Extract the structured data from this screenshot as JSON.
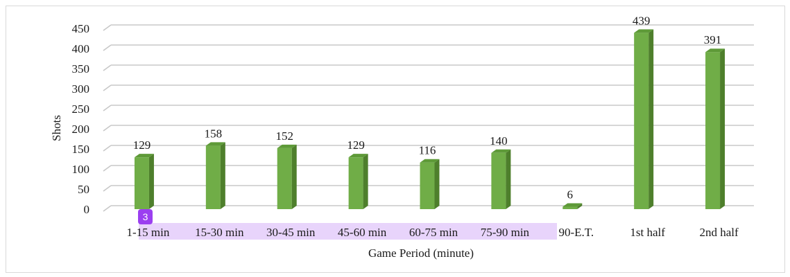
{
  "chart_data": {
    "type": "bar",
    "title": "",
    "xlabel": "Game Period (minute)",
    "ylabel": "Shots",
    "ylim": [
      0,
      450
    ],
    "yticks": [
      0,
      50,
      100,
      150,
      200,
      250,
      300,
      350,
      400,
      450
    ],
    "grid": true,
    "legend": "none",
    "bar_color": "#70ad47",
    "bar_side_color": "#4e7f2c",
    "bar_top_color": "#5e9a38",
    "categories": [
      "1-15 min",
      "15-30 min",
      "30-45 min",
      "45-60 min",
      "60-75 min",
      "75-90 min",
      "90-E.T.",
      "1st half",
      "2nd half"
    ],
    "values": [
      129,
      158,
      152,
      129,
      116,
      140,
      6,
      439,
      391
    ]
  },
  "overlay": {
    "badge_text": "3",
    "badge_color": "#9b3ff0",
    "highlight_color": "#e8d4fb"
  }
}
